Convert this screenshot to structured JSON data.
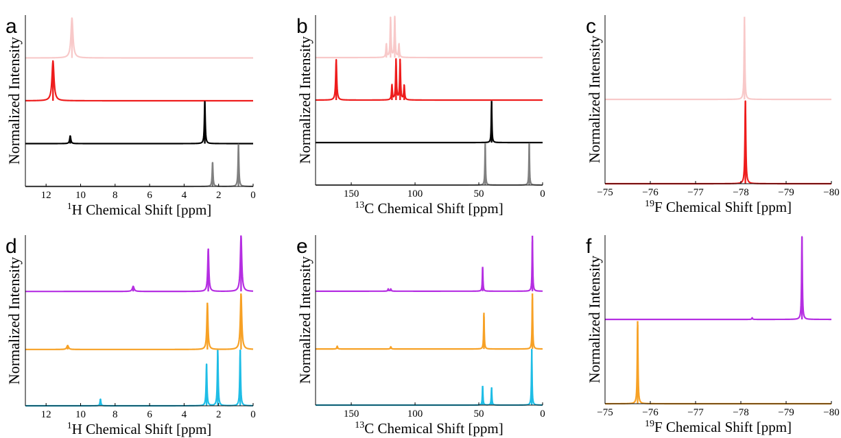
{
  "chart_data": [
    {
      "panel": "a",
      "type": "line",
      "ylabel": "Normalized Intensity",
      "xlabel": {
        "sup": "1",
        "text": "H Chemical Shift [ppm]"
      },
      "xlim": [
        13.2,
        0
      ],
      "xticks": [
        12,
        10,
        8,
        6,
        4,
        2,
        0
      ],
      "offset_traces": true,
      "series": [
        {
          "color": "#f8c9c9",
          "peaks": [
            {
              "x": 10.5,
              "h": 0.93,
              "w": 0.07
            }
          ]
        },
        {
          "color": "#ee1c1c",
          "peaks": [
            {
              "x": 11.6,
              "h": 0.93,
              "w": 0.07
            }
          ]
        },
        {
          "color": "#000000",
          "peaks": [
            {
              "x": 2.8,
              "h": 0.98,
              "w": 0.03
            },
            {
              "x": 10.6,
              "h": 0.18,
              "w": 0.04
            }
          ]
        },
        {
          "color": "#808080",
          "peaks": [
            {
              "x": 0.85,
              "h": 0.98,
              "w": 0.03
            },
            {
              "x": 2.35,
              "h": 0.56,
              "w": 0.03
            }
          ]
        }
      ]
    },
    {
      "panel": "b",
      "type": "line",
      "ylabel": "Normalized Intensity",
      "xlabel": {
        "sup": "13",
        "text": "C Chemical Shift [ppm]"
      },
      "xlim": [
        178,
        0
      ],
      "xticks": [
        150,
        100,
        50,
        0
      ],
      "offset_traces": true,
      "series": [
        {
          "color": "#f8c9c9",
          "peaks": [
            {
              "x": 119.2,
              "h": 0.95,
              "w": 0.4
            },
            {
              "x": 115.9,
              "h": 0.95,
              "w": 0.4
            },
            {
              "x": 122.5,
              "h": 0.32,
              "w": 0.4
            },
            {
              "x": 112.6,
              "h": 0.32,
              "w": 0.4
            }
          ]
        },
        {
          "color": "#ee1c1c",
          "peaks": [
            {
              "x": 161.8,
              "h": 0.95,
              "w": 0.5
            },
            {
              "x": 114.9,
              "h": 0.95,
              "w": 0.4
            },
            {
              "x": 111.7,
              "h": 0.95,
              "w": 0.4
            },
            {
              "x": 118.1,
              "h": 0.35,
              "w": 0.4
            },
            {
              "x": 108.5,
              "h": 0.35,
              "w": 0.4
            }
          ]
        },
        {
          "color": "#000000",
          "peaks": [
            {
              "x": 40.0,
              "h": 0.98,
              "w": 0.3
            }
          ]
        },
        {
          "color": "#808080",
          "peaks": [
            {
              "x": 45.0,
              "h": 0.98,
              "w": 0.3
            },
            {
              "x": 10.5,
              "h": 0.98,
              "w": 0.3
            }
          ]
        }
      ]
    },
    {
      "panel": "c",
      "type": "line",
      "ylabel": "Normalized Intensity",
      "xlabel": {
        "sup": "19",
        "text": "F Chemical Shift [ppm]"
      },
      "xlim": [
        -75,
        -80
      ],
      "xticks": [
        -75,
        -76,
        -77,
        -78,
        -79,
        -80
      ],
      "tick_text": [
        "−75",
        "−76",
        "−77",
        "−78",
        "−79",
        "−80"
      ],
      "offset_traces": true,
      "series": [
        {
          "color": "#f8c9c9",
          "peaks": [
            {
              "x": -78.08,
              "h": 0.98,
              "w": 0.01
            }
          ]
        },
        {
          "color": "#ee1c1c",
          "peaks": [
            {
              "x": -78.1,
              "h": 0.98,
              "w": 0.012
            }
          ]
        }
      ]
    },
    {
      "panel": "d",
      "type": "line",
      "ylabel": "Normalized Intensity",
      "xlabel": {
        "sup": "1",
        "text": "H Chemical Shift [ppm]"
      },
      "xlim": [
        13.2,
        0
      ],
      "xticks": [
        12,
        10,
        8,
        6,
        4,
        2,
        0
      ],
      "offset_traces": true,
      "series": [
        {
          "color": "#b52ee2",
          "peaks": [
            {
              "x": 0.7,
              "h": 0.98,
              "w": 0.05
            },
            {
              "x": 2.6,
              "h": 0.75,
              "w": 0.04
            },
            {
              "x": 6.95,
              "h": 0.09,
              "w": 0.06
            }
          ]
        },
        {
          "color": "#f7a125",
          "peaks": [
            {
              "x": 0.7,
              "h": 0.98,
              "w": 0.05
            },
            {
              "x": 2.65,
              "h": 0.82,
              "w": 0.04
            },
            {
              "x": 10.75,
              "h": 0.07,
              "w": 0.06
            }
          ]
        },
        {
          "color": "#1fbde6",
          "peaks": [
            {
              "x": 0.75,
              "h": 0.98,
              "w": 0.03
            },
            {
              "x": 2.05,
              "h": 0.98,
              "w": 0.03
            },
            {
              "x": 2.7,
              "h": 0.73,
              "w": 0.03
            },
            {
              "x": 8.85,
              "h": 0.12,
              "w": 0.03
            }
          ]
        }
      ]
    },
    {
      "panel": "e",
      "type": "line",
      "ylabel": "Normalized Intensity",
      "xlabel": {
        "sup": "13",
        "text": "C Chemical Shift [ppm]"
      },
      "xlim": [
        178,
        0
      ],
      "xticks": [
        150,
        100,
        50,
        0
      ],
      "offset_traces": true,
      "series": [
        {
          "color": "#b52ee2",
          "peaks": [
            {
              "x": 8.0,
              "h": 0.98,
              "w": 0.3
            },
            {
              "x": 47.0,
              "h": 0.43,
              "w": 0.3
            },
            {
              "x": 121.0,
              "h": 0.04,
              "w": 0.4
            },
            {
              "x": 119.0,
              "h": 0.04,
              "w": 0.4
            }
          ]
        },
        {
          "color": "#f7a125",
          "peaks": [
            {
              "x": 8.0,
              "h": 0.98,
              "w": 0.3
            },
            {
              "x": 46.0,
              "h": 0.64,
              "w": 0.3
            },
            {
              "x": 161.0,
              "h": 0.05,
              "w": 0.4
            },
            {
              "x": 119.0,
              "h": 0.04,
              "w": 0.4
            }
          ]
        },
        {
          "color": "#1fbde6",
          "peaks": [
            {
              "x": 8.5,
              "h": 0.98,
              "w": 0.3
            },
            {
              "x": 47.0,
              "h": 0.34,
              "w": 0.3
            },
            {
              "x": 40.0,
              "h": 0.31,
              "w": 0.3
            }
          ]
        }
      ]
    },
    {
      "panel": "f",
      "type": "line",
      "ylabel": "Normalized Intensity",
      "xlabel": {
        "sup": "19",
        "text": "F Chemical Shift [ppm]"
      },
      "xlim": [
        -75,
        -80
      ],
      "xticks": [
        -75,
        -76,
        -77,
        -78,
        -79,
        -80
      ],
      "tick_text": [
        "−75",
        "−76",
        "−77",
        "−78",
        "−79",
        "−80"
      ],
      "offset_traces": true,
      "series": [
        {
          "color": "#b52ee2",
          "peaks": [
            {
              "x": -79.35,
              "h": 0.98,
              "w": 0.01
            },
            {
              "x": -78.25,
              "h": 0.02,
              "w": 0.01
            }
          ]
        },
        {
          "color": "#f7a125",
          "peaks": [
            {
              "x": -75.72,
              "h": 0.98,
              "w": 0.01
            }
          ]
        }
      ]
    }
  ]
}
